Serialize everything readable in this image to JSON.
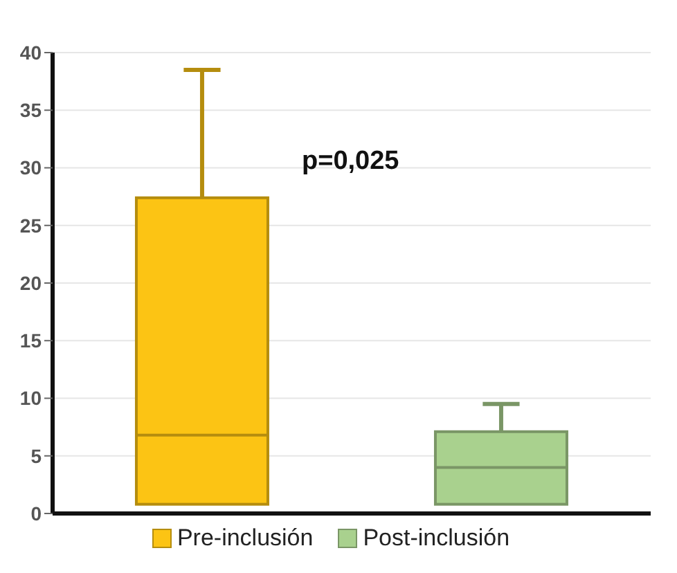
{
  "chart_data": {
    "type": "box",
    "categories": [
      null,
      null
    ],
    "series": [
      {
        "name": "Pre-inclusión",
        "color": "#fcc414",
        "boxes": [
          {
            "low": 0.8,
            "q1": 0.8,
            "median": 6.8,
            "q3": 27.4,
            "high": 38.5
          },
          null
        ]
      },
      {
        "name": "Post-inclusión",
        "color": "#a9d18e",
        "boxes": [
          null,
          {
            "low": 0.8,
            "q1": 0.8,
            "median": 4.0,
            "q3": 7.1,
            "high": 9.5
          }
        ]
      }
    ],
    "ylim": [
      0,
      40
    ],
    "yticks": [
      0,
      5,
      10,
      15,
      20,
      25,
      30,
      35,
      40
    ],
    "grid": "y",
    "legend": "bottom",
    "annotations": [
      "p=0,025"
    ]
  }
}
